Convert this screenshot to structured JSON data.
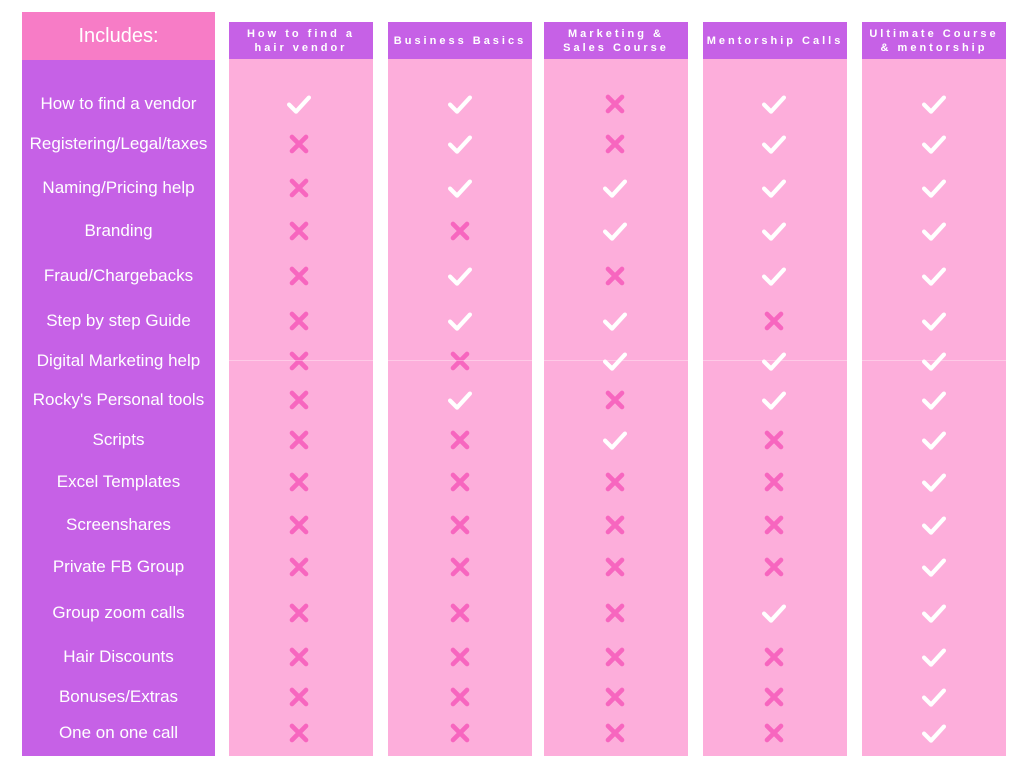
{
  "includes_header": "Includes:",
  "features": [
    "How to find a vendor",
    "Registering/Legal/taxes",
    "Naming/Pricing help",
    "Branding",
    "Fraud/Chargebacks",
    "Step by step Guide",
    "Digital Marketing help",
    "Rocky's Personal tools",
    "Scripts",
    "Excel Templates",
    "Screenshares",
    "Private FB Group",
    "Group zoom calls",
    "Hair Discounts",
    "Bonuses/Extras",
    "One on one call"
  ],
  "plans": [
    {
      "title": "How to find a hair vendor",
      "includes": [
        true,
        false,
        false,
        false,
        false,
        false,
        false,
        false,
        false,
        false,
        false,
        false,
        false,
        false,
        false,
        false
      ]
    },
    {
      "title": "Business Basics",
      "includes": [
        true,
        true,
        true,
        false,
        true,
        true,
        false,
        true,
        false,
        false,
        false,
        false,
        false,
        false,
        false,
        false
      ]
    },
    {
      "title": "Marketing & Sales Course",
      "includes": [
        false,
        false,
        true,
        true,
        false,
        true,
        true,
        false,
        true,
        false,
        false,
        false,
        false,
        false,
        false,
        false
      ]
    },
    {
      "title": "Mentorship Calls",
      "includes": [
        true,
        true,
        true,
        true,
        true,
        false,
        true,
        true,
        false,
        false,
        false,
        false,
        true,
        false,
        false,
        false
      ]
    },
    {
      "title": "Ultimate Course & mentorship",
      "includes": [
        true,
        true,
        true,
        true,
        true,
        true,
        true,
        true,
        true,
        true,
        true,
        true,
        true,
        true,
        true,
        true
      ]
    }
  ],
  "colors": {
    "header_pink": "#f77cc6",
    "purple": "#c661e6",
    "column_pink": "#fdaedb",
    "cross_pink": "#f766bf",
    "check_white": "#ffffff"
  },
  "icons": {
    "included": "check-icon",
    "excluded": "cross-icon"
  }
}
